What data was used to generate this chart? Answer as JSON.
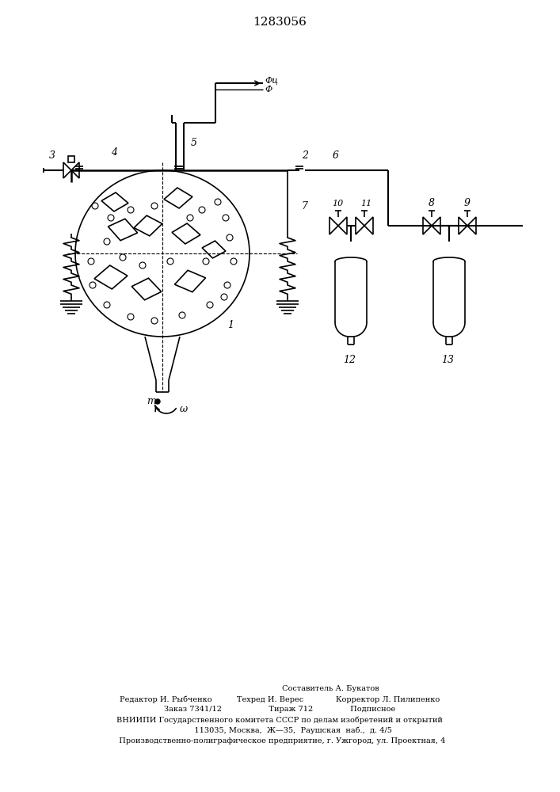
{
  "title": "1283056",
  "bg_color": "#ffffff",
  "line_color": "#000000",
  "figsize": [
    7.07,
    10.0
  ],
  "dpi": 100,
  "footer_line1": "                                         Составитель А. Букатов",
  "footer_line2": "Редактор И. Рыбченко          Техред И. Верес             Корректор Л. Пилипенко",
  "footer_line3": "Заказ 7341/12                   Тираж 712               Подписное",
  "footer_line4": "ВНИИПИ Государственного комитета СССР по делам изобретений и открытий",
  "footer_line5": "           113035, Москва,  Ж—35,  Раушская  наб.,  д. 4/5",
  "footer_line6": "  Производственно-полиграфическое предприятие, г. Ужгород, ул. Проектная, 4"
}
